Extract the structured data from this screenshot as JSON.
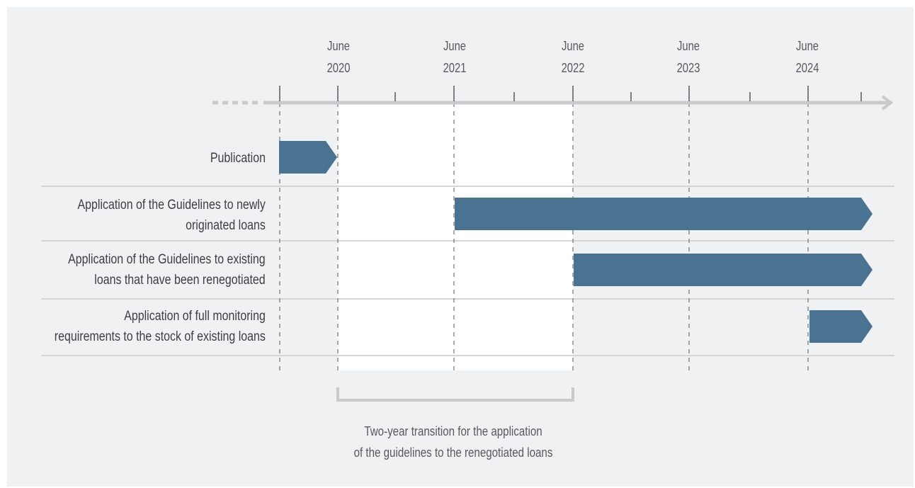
{
  "timeline": {
    "ticks": [
      {
        "month": "June",
        "year": "2020"
      },
      {
        "month": "June",
        "year": "2021"
      },
      {
        "month": "June",
        "year": "2022"
      },
      {
        "month": "June",
        "year": "2023"
      },
      {
        "month": "June",
        "year": "2024"
      }
    ]
  },
  "rows": [
    {
      "label": "Publication",
      "color": "#4a7391"
    },
    {
      "label": "Application of the Guidelines to newly\noriginated loans",
      "color": "#4a7391"
    },
    {
      "label": "Application of the Guidelines to existing\nloans that have been renegotiated",
      "color": "#4a7391"
    },
    {
      "label": "Application of full monitoring\nrequirements to the stock of existing loans",
      "color": "#4a7391"
    }
  ],
  "transition": {
    "caption": "Two-year transition for the application\nof the guidelines to the renegotiated loans"
  },
  "colors": {
    "bar": "#4a7391",
    "axis": "#c8cacd",
    "background": "#f0f1f3",
    "highlight": "#ffffff"
  }
}
